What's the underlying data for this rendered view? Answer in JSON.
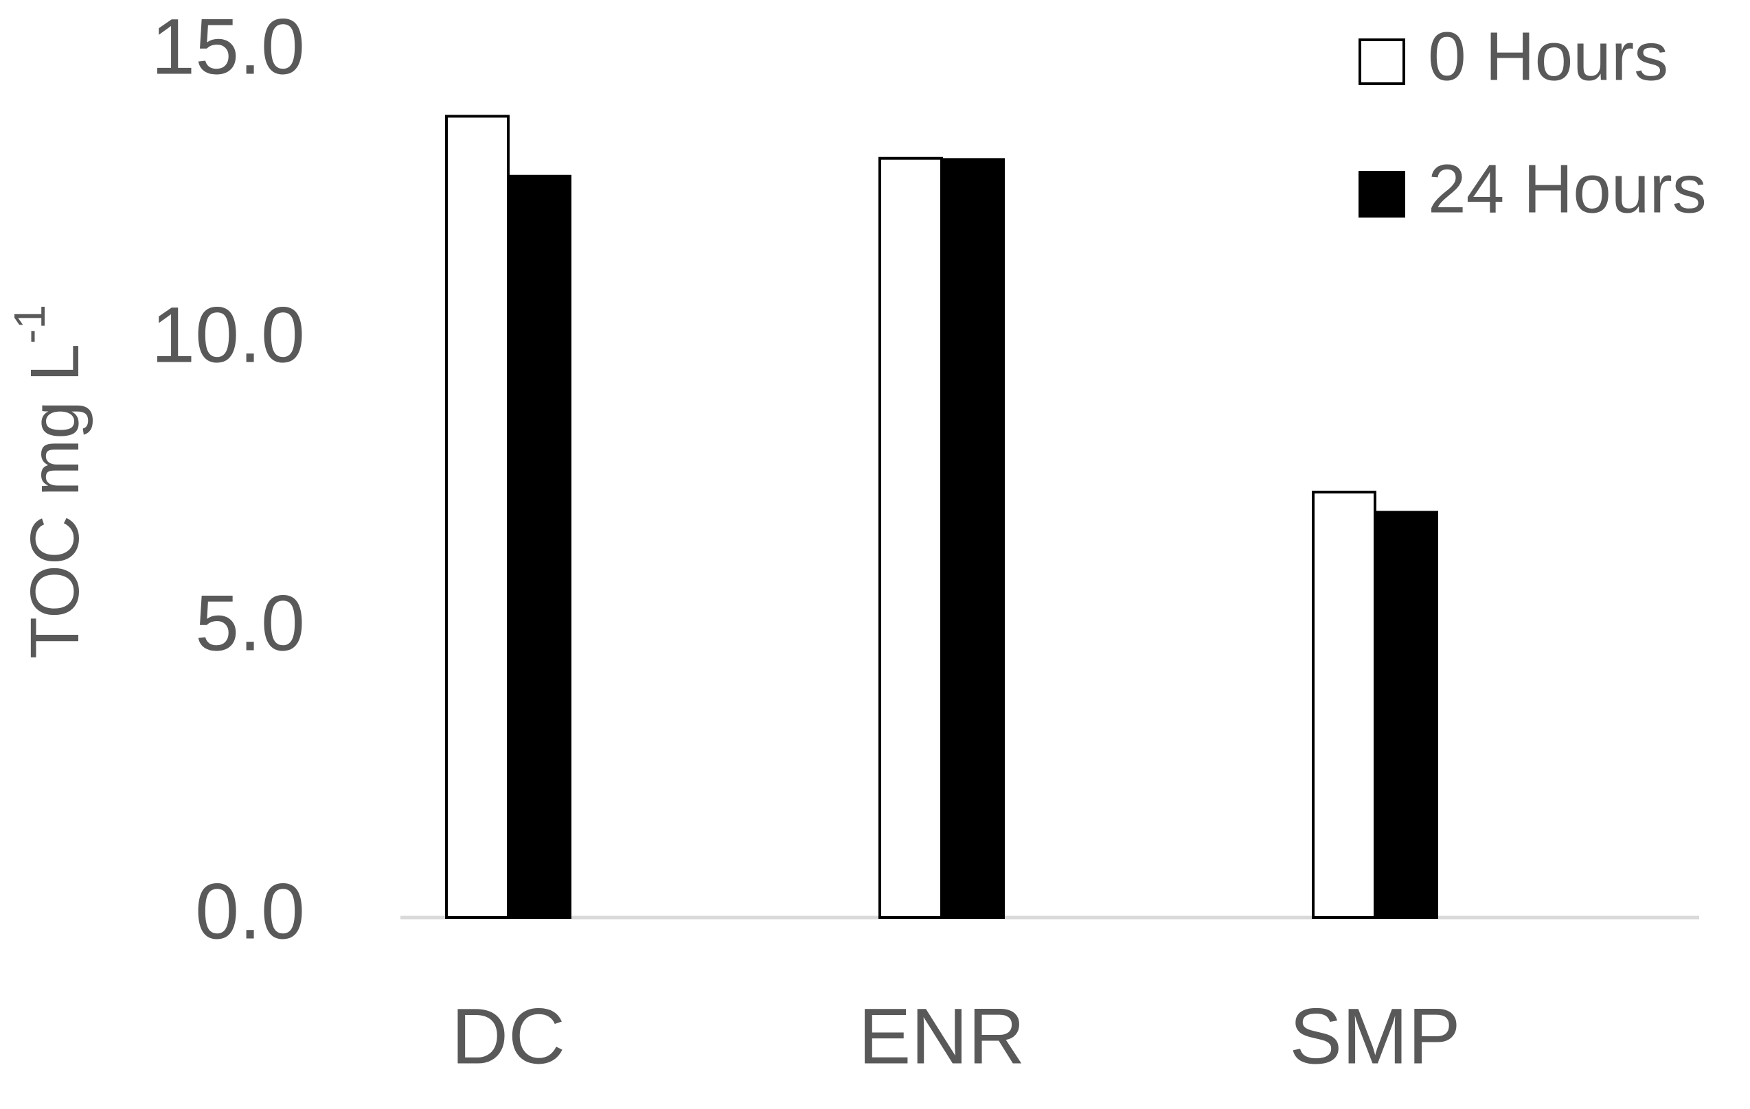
{
  "chart_data": {
    "type": "bar",
    "y_label": "TOC mg L",
    "y_label_superscript": "-1",
    "categories": [
      "DC",
      "ENR",
      "SMP"
    ],
    "series": [
      {
        "name": "0 Hours",
        "color": "#ffffff",
        "values": [
          13.9,
          13.17,
          7.38
        ]
      },
      {
        "name": "24 Hours",
        "color": "#000000",
        "values": [
          12.86,
          13.15,
          7.03
        ]
      }
    ],
    "ylim": [
      0,
      15
    ],
    "yticks": [
      {
        "value": 0,
        "label": "0.0"
      },
      {
        "value": 5,
        "label": "5.0"
      },
      {
        "value": 10,
        "label": "10.0"
      },
      {
        "value": 15,
        "label": "15.0"
      }
    ],
    "grid": false,
    "legend": "top-right"
  }
}
